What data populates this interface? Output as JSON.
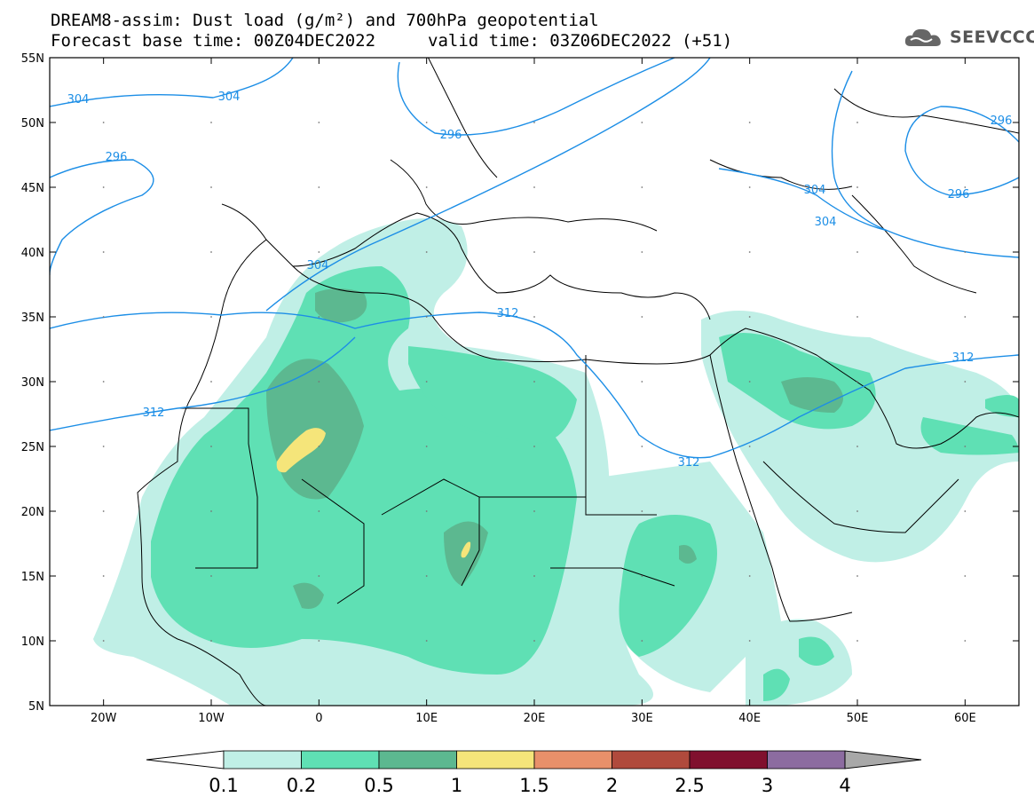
{
  "title": {
    "line1": "DREAM8-assim: Dust load (g/m²) and 700hPa geopotential",
    "line2_left": "Forecast base time: 00Z04DEC2022",
    "line2_right": "valid time: 03Z06DEC2022 (+51)"
  },
  "logo": {
    "text": "SEEVCCC",
    "icon": "cloud-icon"
  },
  "map": {
    "lat_labels": [
      "55N",
      "50N",
      "45N",
      "40N",
      "35N",
      "30N",
      "25N",
      "20N",
      "15N",
      "10N",
      "5N"
    ],
    "lon_labels": [
      "20W",
      "10W",
      "0",
      "10E",
      "20E",
      "30E",
      "40E",
      "50E",
      "60E"
    ],
    "lat_range": [
      5,
      55
    ],
    "lon_range": [
      -25,
      65
    ],
    "contour_labels": [
      "304",
      "304",
      "296",
      "296",
      "304",
      "304",
      "304",
      "296",
      "312",
      "312",
      "312",
      "312"
    ]
  },
  "colorbar": {
    "labels": [
      "0.1",
      "0.2",
      "0.5",
      "1",
      "1.5",
      "2",
      "2.5",
      "3",
      "4"
    ],
    "colors": [
      "#c0efe6",
      "#5fe0b4",
      "#5cb890",
      "#f5e57a",
      "#e8906a",
      "#b04a3c",
      "#80102e",
      "#8c6ca0"
    ],
    "under_color": "#ffffff",
    "over_color": "#a8a8a8"
  }
}
